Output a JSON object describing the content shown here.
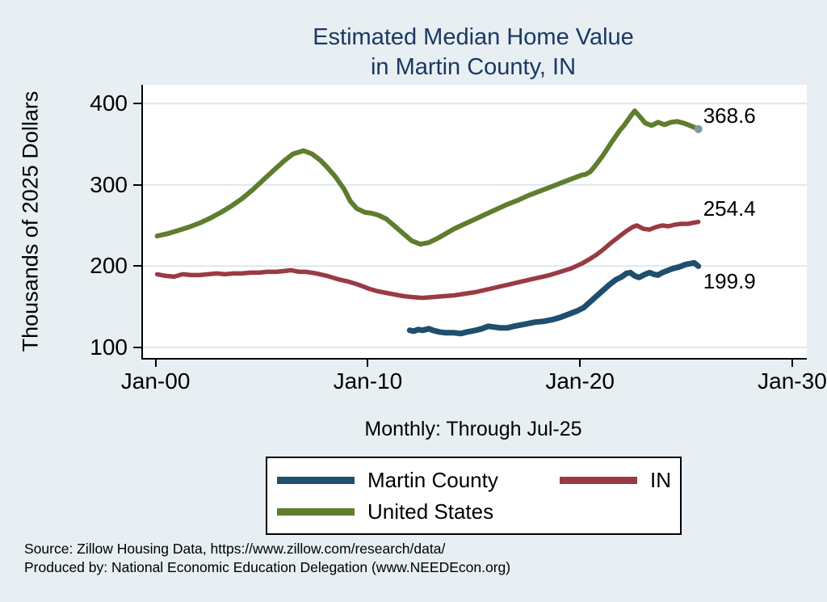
{
  "title": {
    "line1": "Estimated Median Home Value",
    "line2": "in Martin County, IN"
  },
  "subtitle": "Monthly: Through Jul-25",
  "y_axis_title": "Thousands of 2025 Dollars",
  "source_lines": {
    "line1": "Source: Zillow Housing Data, https://www.zillow.com/research/data/",
    "line2": "Produced by: National Economic Education Delegation (www.NEEDEcon.org)"
  },
  "colors": {
    "background": "#e7eff2",
    "plot_background": "#ffffff",
    "gridline": "#dce8ee",
    "title_navy": "#1b3864",
    "martin_county": "#1f4e6e",
    "indiana": "#9a3a44",
    "united_states": "#5f7d2e",
    "end_marker": "#7d9aa0",
    "axis": "#000000"
  },
  "legend": {
    "items": [
      {
        "label": "Martin County",
        "color": "#1f4e6e"
      },
      {
        "label": "IN",
        "color": "#9a3a44"
      },
      {
        "label": "United States",
        "color": "#5f7d2e"
      }
    ]
  },
  "chart_data": {
    "type": "line",
    "title": "Estimated Median Home Value in Martin County, IN",
    "subtitle": "Monthly: Through Jul-25",
    "xlabel": "",
    "ylabel": "Thousands of 2025 Dollars",
    "xlim": [
      1999.33,
      2030.61
    ],
    "ylim": [
      87,
      423
    ],
    "grid": true,
    "legend_position": "bottom",
    "x_ticks": [
      {
        "v": 2000,
        "label": "Jan-00"
      },
      {
        "v": 2010,
        "label": "Jan-10"
      },
      {
        "v": 2020,
        "label": "Jan-20"
      },
      {
        "v": 2030,
        "label": "Jan-30"
      }
    ],
    "y_ticks": [
      100,
      200,
      300,
      400
    ],
    "series": [
      {
        "name": "United States",
        "color": "#5f7d2e",
        "line_width": 6,
        "end_label": "368.6",
        "label_side": "above",
        "end_marker": true,
        "end_marker_color": "#7d9aa0",
        "points": [
          [
            2000.0,
            237
          ],
          [
            2000.5,
            240
          ],
          [
            2001.0,
            244
          ],
          [
            2001.5,
            248
          ],
          [
            2002.0,
            253
          ],
          [
            2002.5,
            259
          ],
          [
            2003.0,
            266
          ],
          [
            2003.5,
            274
          ],
          [
            2004.0,
            283
          ],
          [
            2004.5,
            294
          ],
          [
            2005.0,
            306
          ],
          [
            2005.5,
            318
          ],
          [
            2006.0,
            330
          ],
          [
            2006.4,
            338
          ],
          [
            2006.9,
            342
          ],
          [
            2007.3,
            338
          ],
          [
            2007.7,
            330
          ],
          [
            2008.0,
            322
          ],
          [
            2008.4,
            310
          ],
          [
            2008.8,
            295
          ],
          [
            2009.1,
            280
          ],
          [
            2009.4,
            271
          ],
          [
            2009.8,
            266
          ],
          [
            2010.1,
            265
          ],
          [
            2010.4,
            263
          ],
          [
            2010.8,
            258
          ],
          [
            2011.2,
            249
          ],
          [
            2011.6,
            240
          ],
          [
            2012.0,
            231
          ],
          [
            2012.4,
            227
          ],
          [
            2012.8,
            229
          ],
          [
            2013.2,
            234
          ],
          [
            2013.6,
            240
          ],
          [
            2014.0,
            246
          ],
          [
            2014.5,
            252
          ],
          [
            2015.0,
            258
          ],
          [
            2015.5,
            264
          ],
          [
            2016.0,
            270
          ],
          [
            2016.5,
            276
          ],
          [
            2017.0,
            281
          ],
          [
            2017.5,
            287
          ],
          [
            2018.0,
            292
          ],
          [
            2018.5,
            297
          ],
          [
            2019.0,
            302
          ],
          [
            2019.5,
            307
          ],
          [
            2020.0,
            312
          ],
          [
            2020.2,
            313
          ],
          [
            2020.4,
            316
          ],
          [
            2020.6,
            322
          ],
          [
            2021.0,
            336
          ],
          [
            2021.4,
            352
          ],
          [
            2021.8,
            367
          ],
          [
            2022.0,
            373
          ],
          [
            2022.3,
            384
          ],
          [
            2022.5,
            391
          ],
          [
            2022.8,
            382
          ],
          [
            2023.0,
            376
          ],
          [
            2023.3,
            373
          ],
          [
            2023.6,
            377
          ],
          [
            2023.9,
            374
          ],
          [
            2024.2,
            377
          ],
          [
            2024.5,
            378
          ],
          [
            2024.8,
            376
          ],
          [
            2025.1,
            373
          ],
          [
            2025.5,
            368.6
          ]
        ]
      },
      {
        "name": "IN",
        "color": "#9a3a44",
        "line_width": 5.5,
        "end_label": "254.4",
        "label_side": "above",
        "end_marker": false,
        "points": [
          [
            2000.0,
            190
          ],
          [
            2000.4,
            188
          ],
          [
            2000.8,
            187
          ],
          [
            2001.2,
            190
          ],
          [
            2001.6,
            189
          ],
          [
            2002.0,
            189
          ],
          [
            2002.4,
            190
          ],
          [
            2002.8,
            191
          ],
          [
            2003.2,
            190
          ],
          [
            2003.6,
            191
          ],
          [
            2004.0,
            191
          ],
          [
            2004.4,
            192
          ],
          [
            2004.8,
            192
          ],
          [
            2005.2,
            193
          ],
          [
            2005.6,
            193
          ],
          [
            2006.0,
            194
          ],
          [
            2006.3,
            195
          ],
          [
            2006.7,
            193
          ],
          [
            2007.0,
            193
          ],
          [
            2007.5,
            191
          ],
          [
            2008.0,
            188
          ],
          [
            2008.5,
            184
          ],
          [
            2009.0,
            181
          ],
          [
            2009.5,
            177
          ],
          [
            2010.0,
            172
          ],
          [
            2010.4,
            169
          ],
          [
            2010.8,
            167
          ],
          [
            2011.2,
            165
          ],
          [
            2011.6,
            163
          ],
          [
            2012.0,
            162
          ],
          [
            2012.5,
            161
          ],
          [
            2013.0,
            162
          ],
          [
            2013.5,
            163
          ],
          [
            2014.0,
            164
          ],
          [
            2014.5,
            166
          ],
          [
            2015.0,
            168
          ],
          [
            2015.5,
            171
          ],
          [
            2016.0,
            174
          ],
          [
            2016.5,
            177
          ],
          [
            2017.0,
            180
          ],
          [
            2017.5,
            183
          ],
          [
            2018.0,
            186
          ],
          [
            2018.5,
            189
          ],
          [
            2019.0,
            193
          ],
          [
            2019.5,
            197
          ],
          [
            2020.0,
            203
          ],
          [
            2020.4,
            209
          ],
          [
            2020.7,
            214
          ],
          [
            2021.0,
            220
          ],
          [
            2021.4,
            229
          ],
          [
            2021.8,
            237
          ],
          [
            2022.1,
            243
          ],
          [
            2022.4,
            248
          ],
          [
            2022.6,
            250
          ],
          [
            2022.9,
            246
          ],
          [
            2023.2,
            245
          ],
          [
            2023.5,
            248
          ],
          [
            2023.8,
            250
          ],
          [
            2024.1,
            249
          ],
          [
            2024.4,
            251
          ],
          [
            2024.7,
            252
          ],
          [
            2025.0,
            252
          ],
          [
            2025.2,
            253
          ],
          [
            2025.5,
            254.4
          ]
        ]
      },
      {
        "name": "Martin County",
        "color": "#1f4e6e",
        "line_width": 7,
        "end_label": "199.9",
        "label_side": "below",
        "end_marker": false,
        "points": [
          [
            2011.9,
            121
          ],
          [
            2012.1,
            120
          ],
          [
            2012.3,
            122
          ],
          [
            2012.5,
            121
          ],
          [
            2012.8,
            123
          ],
          [
            2013.0,
            121
          ],
          [
            2013.3,
            119
          ],
          [
            2013.6,
            118
          ],
          [
            2014.0,
            118
          ],
          [
            2014.3,
            117
          ],
          [
            2014.6,
            119
          ],
          [
            2015.0,
            121
          ],
          [
            2015.3,
            123
          ],
          [
            2015.6,
            126
          ],
          [
            2015.9,
            125
          ],
          [
            2016.2,
            124
          ],
          [
            2016.5,
            124
          ],
          [
            2016.8,
            126
          ],
          [
            2017.0,
            127
          ],
          [
            2017.4,
            129
          ],
          [
            2017.8,
            131
          ],
          [
            2018.2,
            132
          ],
          [
            2018.6,
            134
          ],
          [
            2019.0,
            137
          ],
          [
            2019.4,
            141
          ],
          [
            2019.8,
            145
          ],
          [
            2020.1,
            149
          ],
          [
            2020.4,
            156
          ],
          [
            2020.7,
            163
          ],
          [
            2021.0,
            170
          ],
          [
            2021.3,
            177
          ],
          [
            2021.6,
            183
          ],
          [
            2021.9,
            187
          ],
          [
            2022.1,
            191
          ],
          [
            2022.3,
            192
          ],
          [
            2022.5,
            188
          ],
          [
            2022.7,
            186
          ],
          [
            2023.0,
            190
          ],
          [
            2023.2,
            192
          ],
          [
            2023.4,
            190
          ],
          [
            2023.6,
            189
          ],
          [
            2023.8,
            192
          ],
          [
            2024.0,
            194
          ],
          [
            2024.3,
            197
          ],
          [
            2024.6,
            199
          ],
          [
            2024.9,
            202
          ],
          [
            2025.1,
            203
          ],
          [
            2025.3,
            204
          ],
          [
            2025.5,
            199.9
          ]
        ]
      }
    ]
  }
}
